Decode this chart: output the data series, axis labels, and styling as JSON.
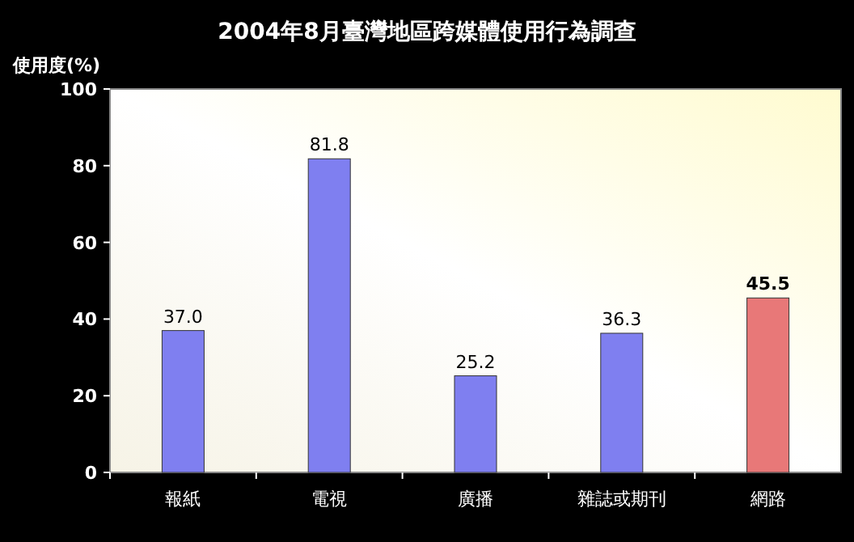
{
  "chart_data": {
    "type": "bar",
    "title": "2004年8月臺灣地區跨媒體使用行為調查",
    "ylabel": "使用度(%)",
    "categories": [
      "報紙",
      "電視",
      "廣播",
      "雜誌或期刊",
      "網路"
    ],
    "values": [
      37.0,
      81.8,
      25.2,
      36.3,
      45.5
    ],
    "colors": [
      "#7f7ff0",
      "#7f7ff0",
      "#7f7ff0",
      "#7f7ff0",
      "#e87878"
    ],
    "value_labels": [
      "37.0",
      "81.8",
      "25.2",
      "36.3",
      "45.5"
    ],
    "ylim": [
      0,
      100
    ],
    "yticks": [
      0,
      20,
      40,
      60,
      80,
      100
    ]
  }
}
